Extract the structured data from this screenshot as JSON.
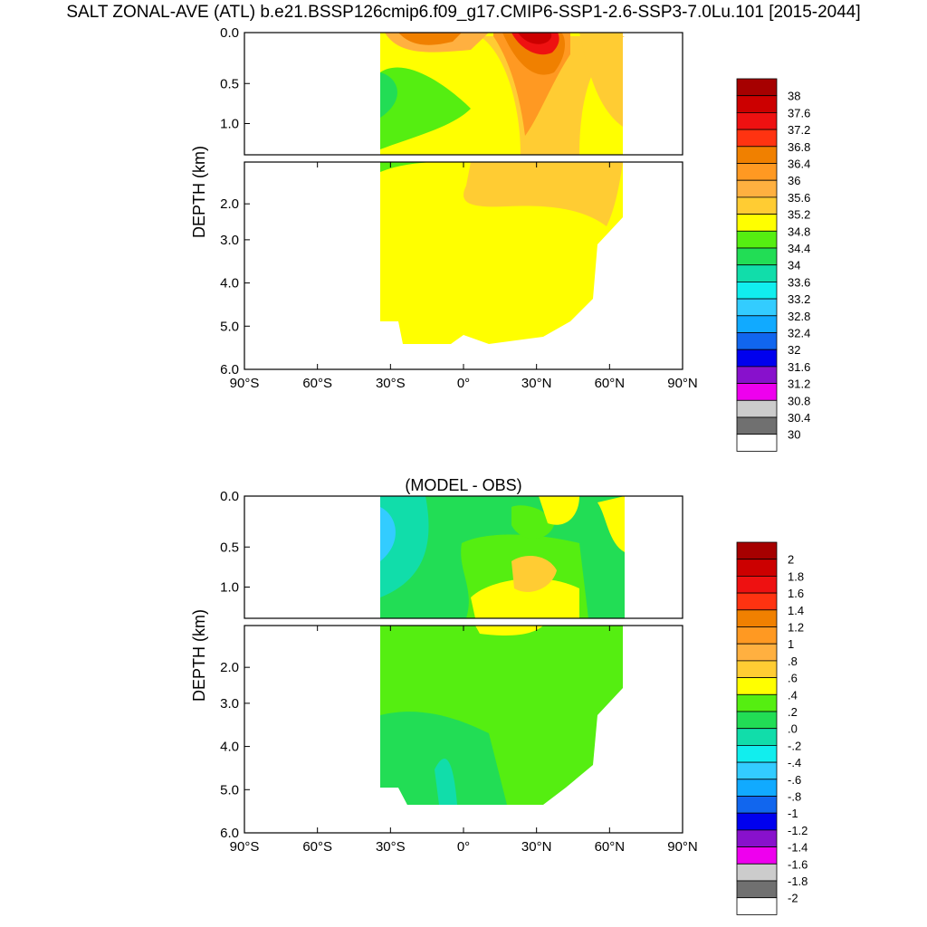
{
  "figure": {
    "title": "SALT ZONAL-AVE (ATL) b.e21.BSSP126cmip6.f09_g17.CMIP6-SSP1-2.6-SSP3-7.0Lu.101 [2015-2044]"
  },
  "chart_data": [
    {
      "type": "heatmap",
      "title": "",
      "ylabel": "DEPTH (km)",
      "xlabel": "",
      "x_ticks": [
        "90°S",
        "60°S",
        "30°S",
        "0°",
        "30°N",
        "60°N",
        "90°N"
      ],
      "y_ticks_upper": [
        "0.0",
        "0.5",
        "1.0"
      ],
      "y_ticks_lower": [
        "2.0",
        "3.0",
        "4.0",
        "5.0",
        "6.0"
      ],
      "xlim": [
        -90,
        90
      ],
      "ylim": [
        0,
        6
      ],
      "upper_panel_depth_km": [
        0,
        1.2
      ],
      "lower_panel_depth_km": [
        1.2,
        6
      ],
      "colorbar": {
        "labels": [
          "38",
          "37.6",
          "37.2",
          "36.8",
          "36.4",
          "36",
          "35.6",
          "35.2",
          "34.8",
          "34.4",
          "34",
          "33.6",
          "33.2",
          "32.8",
          "32.4",
          "32",
          "31.6",
          "31.2",
          "30.8",
          "30.4",
          "30"
        ],
        "colors": [
          "#a60000",
          "#cc0000",
          "#ee1111",
          "#ff3311",
          "#f08000",
          "#ff9922",
          "#ffb040",
          "#ffcc33",
          "#ffff00",
          "#55ee11",
          "#22dd55",
          "#11ddaa",
          "#11eeee",
          "#33ccff",
          "#11aaff",
          "#1166ee",
          "#0000ee",
          "#8811cc",
          "#ee00ee",
          "#cccccc",
          "#707070",
          "#ffffff"
        ]
      },
      "field": "salinity",
      "dominant_values": {
        "deep_ocean": "34.8–35.2",
        "subtropical_north_max": ">37.2 near 25°N surface",
        "south_intermediate_min": "34.4–34.8"
      }
    },
    {
      "type": "heatmap",
      "title": "(MODEL - OBS)",
      "ylabel": "DEPTH (km)",
      "xlabel": "",
      "x_ticks": [
        "90°S",
        "60°S",
        "30°S",
        "0°",
        "30°N",
        "60°N",
        "90°N"
      ],
      "y_ticks_upper": [
        "0.0",
        "0.5",
        "1.0"
      ],
      "y_ticks_lower": [
        "2.0",
        "3.0",
        "4.0",
        "5.0",
        "6.0"
      ],
      "xlim": [
        -90,
        90
      ],
      "ylim": [
        0,
        6
      ],
      "colorbar": {
        "labels": [
          "2",
          "1.8",
          "1.6",
          "1.4",
          "1.2",
          "1",
          ".8",
          ".6",
          ".4",
          ".2",
          ".0",
          "-.2",
          "-.4",
          "-.6",
          "-.8",
          "-1",
          "-1.2",
          "-1.4",
          "-1.6",
          "-1.8",
          "-2"
        ],
        "colors": [
          "#a60000",
          "#cc0000",
          "#ee1111",
          "#ff3311",
          "#f08000",
          "#ff9922",
          "#ffb040",
          "#ffcc33",
          "#ffff00",
          "#55ee11",
          "#22dd55",
          "#11ddaa",
          "#11eeee",
          "#33ccff",
          "#11aaff",
          "#1166ee",
          "#0000ee",
          "#8811cc",
          "#ee00ee",
          "#cccccc",
          "#707070",
          "#ffffff"
        ]
      },
      "field": "salinity difference",
      "dominant_values": {
        "deep_ocean": "0.0–0.4",
        "mid_depth_north": "0.4–0.8",
        "south_surface_min": "-0.6 to -0.2"
      }
    }
  ]
}
